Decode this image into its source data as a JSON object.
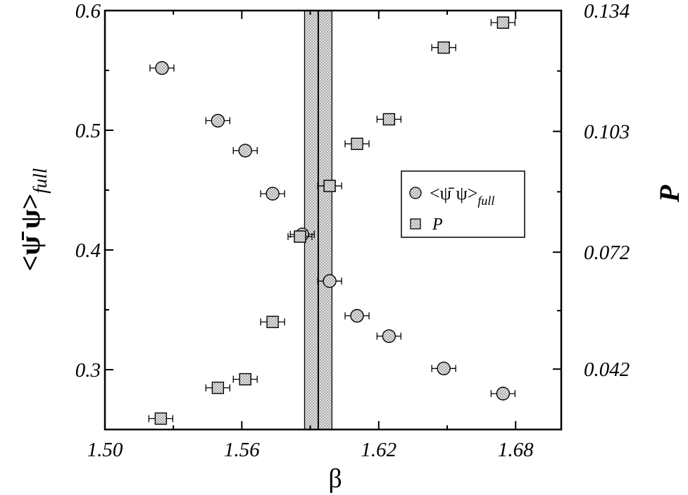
{
  "chart_data": {
    "type": "scatter",
    "xlabel": "β",
    "ylabel": "<ψ̄ ψ>",
    "ylabel_subscript": "full",
    "ylabel_right": "P",
    "xlim": [
      1.5,
      1.7
    ],
    "ylim": [
      0.25,
      0.6
    ],
    "ylim_right": [
      0.0265,
      0.134
    ],
    "x_ticks": [
      "1.50",
      "1.56",
      "1.62",
      "1.68"
    ],
    "x_tick_values": [
      1.5,
      1.56,
      1.62,
      1.68
    ],
    "y_ticks": [
      "0.3",
      "0.4",
      "0.5",
      "0.6"
    ],
    "y_tick_values": [
      0.3,
      0.4,
      0.5,
      0.6
    ],
    "y_ticks_right": [
      "0.042",
      "0.072",
      "0.103",
      "0.134"
    ],
    "y_tick_values_right": [
      0.042,
      0.072,
      0.103,
      0.134
    ],
    "grid": false,
    "legend_position": "right-middle",
    "band": {
      "x_center": 1.5935,
      "x_low": 1.5875,
      "x_high": 1.5995
    },
    "series": [
      {
        "name": "<ψ̄ ψ>",
        "name_subscript": "full",
        "marker": "circle",
        "axis": "left",
        "x": [
          1.525,
          1.5495,
          1.5615,
          1.5735,
          1.5865,
          1.5985,
          1.6105,
          1.6245,
          1.6485,
          1.6745
        ],
        "y": [
          0.552,
          0.508,
          0.483,
          0.447,
          0.413,
          0.374,
          0.345,
          0.328,
          0.301,
          0.28
        ]
      },
      {
        "name": "P",
        "marker": "square",
        "axis": "right",
        "x": [
          1.5245,
          1.5495,
          1.5615,
          1.5735,
          1.5855,
          1.5985,
          1.6105,
          1.6245,
          1.6485,
          1.6745
        ],
        "y": [
          0.0293,
          0.0372,
          0.0394,
          0.0541,
          0.076,
          0.089,
          0.0998,
          0.1061,
          0.1245,
          0.1309
        ]
      }
    ]
  },
  "colors": {
    "marker_fill": "#d6d6d6",
    "band_fill": "#e6e6e6",
    "stroke": "#000000"
  }
}
